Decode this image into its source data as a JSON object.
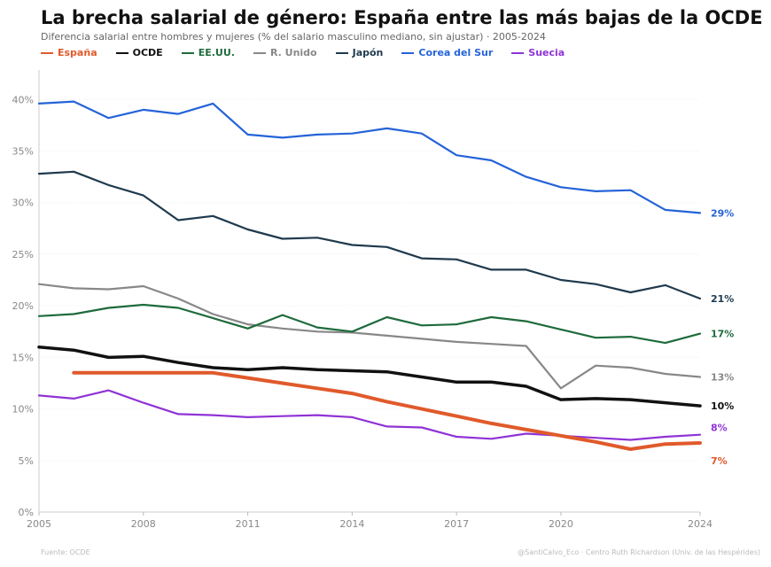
{
  "chart_data": {
    "type": "line",
    "title": "La brecha salarial de género: España entre las más bajas de la OCDE",
    "subtitle": "Diferencia salarial entre hombres y mujeres (% del salario masculino mediano, sin ajustar) · 2005-2024",
    "xlabel": "",
    "ylabel": "",
    "xlim": [
      2005,
      2024
    ],
    "ylim": [
      0,
      42
    ],
    "x_ticks": [
      2005,
      2008,
      2011,
      2014,
      2017,
      2020,
      2024
    ],
    "y_ticks": [
      0,
      5,
      10,
      15,
      20,
      25,
      30,
      35,
      40
    ],
    "y_tick_labels": [
      "0%",
      "5%",
      "10%",
      "15%",
      "20%",
      "25%",
      "30%",
      "35%",
      "40%"
    ],
    "grid": true,
    "legend_position": "top-left",
    "series": [
      {
        "name": "España",
        "color": "#e05a2b",
        "width": 4,
        "x": [
          2006,
          2007,
          2008,
          2009,
          2010,
          2011,
          2012,
          2013,
          2014,
          2015,
          2016,
          2017,
          2018,
          2019,
          2020,
          2021,
          2022,
          2023,
          2024
        ],
        "values": [
          13.5,
          13.5,
          13.5,
          13.5,
          13.5,
          13.0,
          12.5,
          12.0,
          11.5,
          10.7,
          10.0,
          9.3,
          8.6,
          8.0,
          7.4,
          6.8,
          6.1,
          6.6,
          6.7
        ],
        "end_label": "7%"
      },
      {
        "name": "OCDE",
        "color": "#111111",
        "width": 3.5,
        "x": [
          2005,
          2006,
          2007,
          2008,
          2009,
          2010,
          2011,
          2012,
          2013,
          2014,
          2015,
          2016,
          2017,
          2018,
          2019,
          2020,
          2021,
          2022,
          2023,
          2024
        ],
        "values": [
          16.0,
          15.7,
          15.0,
          15.1,
          14.5,
          14.0,
          13.8,
          14.0,
          13.8,
          13.7,
          13.6,
          13.1,
          12.6,
          12.6,
          12.2,
          10.9,
          11.0,
          10.9,
          10.6,
          10.3
        ],
        "end_label": "10%"
      },
      {
        "name": "EE.UU.",
        "color": "#1e6b3c",
        "width": 2.2,
        "x": [
          2005,
          2006,
          2007,
          2008,
          2009,
          2010,
          2011,
          2012,
          2013,
          2014,
          2015,
          2016,
          2017,
          2018,
          2019,
          2020,
          2021,
          2022,
          2023,
          2024
        ],
        "values": [
          19.0,
          19.2,
          19.8,
          20.1,
          19.8,
          18.8,
          17.8,
          19.1,
          17.9,
          17.5,
          18.9,
          18.1,
          18.2,
          18.9,
          18.5,
          17.7,
          16.9,
          17.0,
          16.4,
          17.3
        ],
        "end_label": "17%"
      },
      {
        "name": "R. Unido",
        "color": "#888888",
        "width": 2.2,
        "x": [
          2005,
          2006,
          2007,
          2008,
          2009,
          2010,
          2011,
          2012,
          2013,
          2014,
          2015,
          2016,
          2017,
          2018,
          2019,
          2020,
          2021,
          2022,
          2023,
          2024
        ],
        "values": [
          22.1,
          21.7,
          21.6,
          21.9,
          20.7,
          19.2,
          18.2,
          17.8,
          17.5,
          17.4,
          17.1,
          16.8,
          16.5,
          16.3,
          16.1,
          12.0,
          14.2,
          14.0,
          13.4,
          13.1
        ],
        "end_label": "13%"
      },
      {
        "name": "Japón",
        "color": "#1f3a4d",
        "width": 2.2,
        "x": [
          2005,
          2006,
          2007,
          2008,
          2009,
          2010,
          2011,
          2012,
          2013,
          2014,
          2015,
          2016,
          2017,
          2018,
          2019,
          2020,
          2021,
          2022,
          2023,
          2024
        ],
        "values": [
          32.8,
          33.0,
          31.7,
          30.7,
          28.3,
          28.7,
          27.4,
          26.5,
          26.6,
          25.9,
          25.7,
          24.6,
          24.5,
          23.5,
          23.5,
          22.5,
          22.1,
          21.3,
          22.0,
          20.7
        ],
        "end_label": "21%"
      },
      {
        "name": "Corea del Sur",
        "color": "#2563d9",
        "width": 2.2,
        "x": [
          2005,
          2006,
          2007,
          2008,
          2009,
          2010,
          2011,
          2012,
          2013,
          2014,
          2015,
          2016,
          2017,
          2018,
          2019,
          2020,
          2021,
          2022,
          2023,
          2024
        ],
        "values": [
          39.6,
          39.8,
          38.2,
          39.0,
          38.6,
          39.6,
          36.6,
          36.3,
          36.6,
          36.7,
          37.2,
          36.7,
          34.6,
          34.1,
          32.5,
          31.5,
          31.1,
          31.2,
          29.3,
          29.0
        ],
        "end_label": "29%"
      },
      {
        "name": "Suecia",
        "color": "#8f33d6",
        "width": 2.2,
        "x": [
          2005,
          2006,
          2007,
          2008,
          2009,
          2010,
          2011,
          2012,
          2013,
          2014,
          2015,
          2016,
          2017,
          2018,
          2019,
          2020,
          2021,
          2022,
          2023,
          2024
        ],
        "values": [
          11.3,
          11.0,
          11.8,
          10.6,
          9.5,
          9.4,
          9.2,
          9.3,
          9.4,
          9.2,
          8.3,
          8.2,
          7.3,
          7.1,
          7.6,
          7.4,
          7.2,
          7.0,
          7.3,
          7.5
        ],
        "end_label": "8%"
      }
    ],
    "source": "Fuente: OCDE",
    "credit": "@SantiCalvo_Eco · Centro Ruth Richardson (Univ. de las Hespérides)"
  }
}
